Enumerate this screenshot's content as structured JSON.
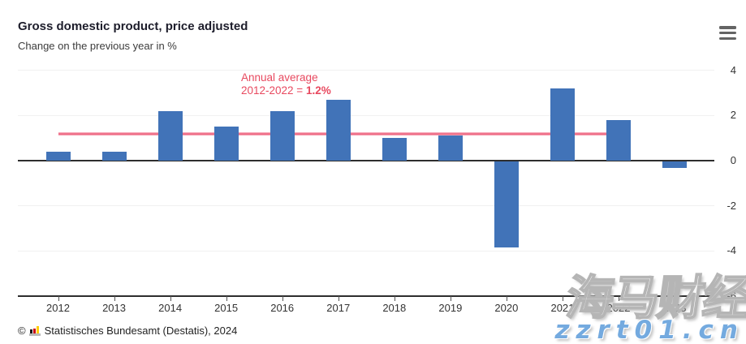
{
  "header": {
    "title": "Gross domestic product, price adjusted",
    "subtitle": "Change on the previous year in %",
    "menu_icon": "hamburger-icon"
  },
  "chart_data": {
    "type": "bar",
    "title": "Gross domestic product, price adjusted",
    "subtitle": "Change on the previous year in %",
    "categories": [
      "2012",
      "2013",
      "2014",
      "2015",
      "2016",
      "2017",
      "2018",
      "2019",
      "2020",
      "2021",
      "2022",
      "2023"
    ],
    "values": [
      0.4,
      0.4,
      2.2,
      1.5,
      2.2,
      2.7,
      1.0,
      1.1,
      -3.8,
      3.2,
      1.8,
      -0.3
    ],
    "xlabel": "",
    "ylabel": "",
    "ylim": [
      -6,
      4
    ],
    "yticks": [
      4,
      2,
      0,
      -2,
      -4,
      -6
    ],
    "grid": true,
    "legend": false,
    "y_axis_position": "right",
    "bar_color": "#4173b8",
    "axis_color": "#2e2e2e",
    "grid_color": "#f1f1f1",
    "average_line": {
      "value": 1.2,
      "from": "2012",
      "to": "2022",
      "color": "#ee6d86",
      "label_line1": "Annual average",
      "label_line2_prefix": "2012-2022 = ",
      "label_value": "1.2%",
      "label_color": "#e8495f"
    }
  },
  "footer": {
    "copyright": "©",
    "logo_icon": "destatis-bar-chart-logo",
    "source": "Statistisches Bundesamt (Destatis), 2024"
  },
  "watermark": {
    "text_cn": "海马财经",
    "text_url": "zzrt01.cn",
    "url_color": "#74aadf"
  }
}
